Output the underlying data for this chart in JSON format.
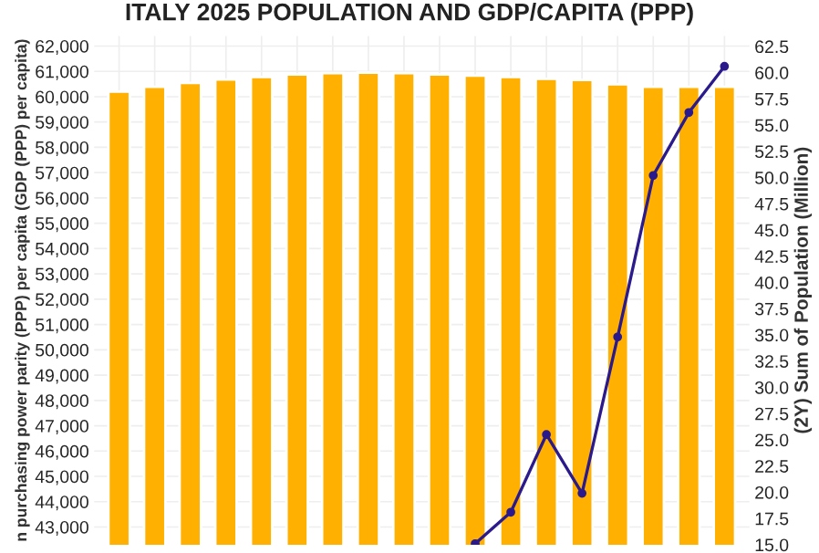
{
  "chart_data": {
    "type": "bar",
    "title": "ITALY 2025 POPULATION AND GDP/CAPITA (PPP)",
    "ylabel": "n purchasing power parity (PPP) per capita (GDP (PPP) per capita)",
    "y2label": "(2Y) Sum of Population (Million)",
    "categories": [
      null,
      null,
      null,
      null,
      null,
      null,
      null,
      null,
      null,
      null,
      null,
      null,
      null,
      null,
      null,
      null,
      null,
      null
    ],
    "series": [
      {
        "color": "#ffb000",
        "values": [
          60200,
          60390,
          60540,
          60680,
          60780,
          60880,
          60930,
          60950,
          60930,
          60880,
          60830,
          60780,
          60710,
          60660,
          60490,
          60390,
          60390,
          60390
        ]
      },
      {
        "type": "line",
        "axis": "y2",
        "color": "#2a1a8c",
        "values": [
          null,
          null,
          null,
          null,
          null,
          null,
          null,
          null,
          null,
          null,
          15.1,
          18.1,
          25.5,
          19.9,
          34.8,
          50.2,
          56.2,
          60.6
        ]
      }
    ],
    "ylim": [
      42300,
      62400
    ],
    "yticks": [
      {
        "value": 43000,
        "label": "43,000"
      },
      {
        "value": 44000,
        "label": "44,000"
      },
      {
        "value": 45000,
        "label": "45,000"
      },
      {
        "value": 46000,
        "label": "46,000"
      },
      {
        "value": 47000,
        "label": "47,000"
      },
      {
        "value": 48000,
        "label": "48,000"
      },
      {
        "value": 49000,
        "label": "49,000"
      },
      {
        "value": 50000,
        "label": "50,000"
      },
      {
        "value": 51000,
        "label": "51,000"
      },
      {
        "value": 52000,
        "label": "52,000"
      },
      {
        "value": 53000,
        "label": "53,000"
      },
      {
        "value": 54000,
        "label": "54,000"
      },
      {
        "value": 55000,
        "label": "55,000"
      },
      {
        "value": 56000,
        "label": "56,000"
      },
      {
        "value": 57000,
        "label": "57,000"
      },
      {
        "value": 58000,
        "label": "58,000"
      },
      {
        "value": 59000,
        "label": "59,000"
      },
      {
        "value": 60000,
        "label": "60,000"
      },
      {
        "value": 61000,
        "label": "61,000"
      },
      {
        "value": 62000,
        "label": "62,000"
      }
    ],
    "y2lim": [
      15.0,
      63.5
    ],
    "y2ticks": [
      {
        "value": 15,
        "label": "15.0"
      },
      {
        "value": 17.5,
        "label": "17.5"
      },
      {
        "value": 20,
        "label": "20.0"
      },
      {
        "value": 22.5,
        "label": "22.5"
      },
      {
        "value": 25,
        "label": "25.0"
      },
      {
        "value": 27.5,
        "label": "27.5"
      },
      {
        "value": 30,
        "label": "30.0"
      },
      {
        "value": 32.5,
        "label": "32.5"
      },
      {
        "value": 35,
        "label": "35.0"
      },
      {
        "value": 37.5,
        "label": "37.5"
      },
      {
        "value": 40,
        "label": "40.0"
      },
      {
        "value": 42.5,
        "label": "42.5"
      },
      {
        "value": 45,
        "label": "45.0"
      },
      {
        "value": 47.5,
        "label": "47.5"
      },
      {
        "value": 50,
        "label": "50.0"
      },
      {
        "value": 52.5,
        "label": "52.5"
      },
      {
        "value": 55,
        "label": "55.0"
      },
      {
        "value": 57.5,
        "label": "57.5"
      },
      {
        "value": 60,
        "label": "60.0"
      },
      {
        "value": 62.5,
        "label": "62.5"
      }
    ],
    "grid": true,
    "marker": "circle",
    "line_style": "solid"
  }
}
